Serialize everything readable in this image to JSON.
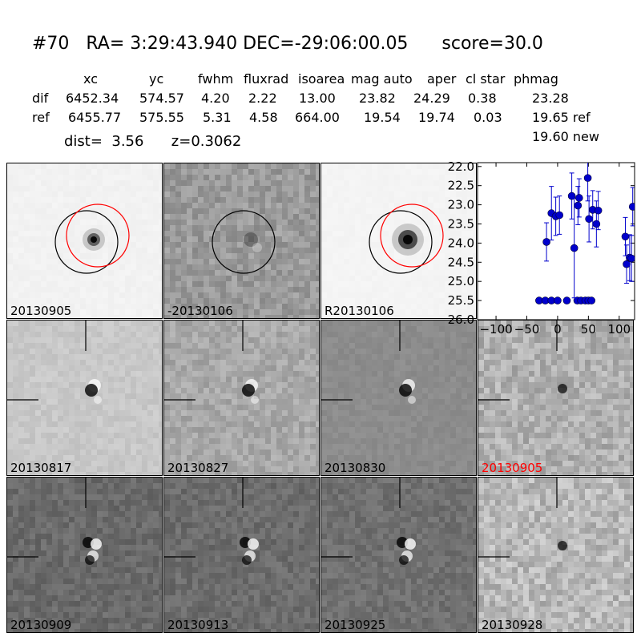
{
  "header": {
    "title": "#70   RA= 3:29:43.940 DEC=-29:06:00.05      score=30.0",
    "columns": [
      "xc",
      "yc",
      "fwhm",
      "fluxrad",
      "isoarea",
      "mag auto",
      "aper",
      "cl star",
      "phmag"
    ],
    "rows": [
      {
        "label": "dif",
        "values": [
          "6452.34",
          "574.57",
          "4.20",
          "2.22",
          "13.00",
          "23.82",
          "24.29",
          "0.38",
          "23.28"
        ]
      },
      {
        "label": "ref",
        "values": [
          "6455.77",
          "575.55",
          "5.31",
          "4.58",
          "664.00",
          "19.54",
          "19.74",
          "0.03",
          "19.65 ref"
        ]
      }
    ],
    "phmag_new": "19.60 new",
    "dist_line": "dist=  3.56      z=0.3062"
  },
  "panels": [
    {
      "label": "20130905",
      "style": "cutout-flat"
    },
    {
      "label": "-20130106",
      "style": "diff-dark"
    },
    {
      "label": "R20130106",
      "style": "cutout-bright"
    },
    {
      "label": "20130817",
      "style": "diff-light"
    },
    {
      "label": "20130827",
      "style": "diff-mid"
    },
    {
      "label": "20130830",
      "style": "diff-smooth"
    },
    {
      "label": "20130905",
      "style": "diff-noisy",
      "highlight": "#ff0000"
    },
    {
      "label": "20130909",
      "style": "diff-dark2"
    },
    {
      "label": "20130913",
      "style": "diff-dark3"
    },
    {
      "label": "20130925",
      "style": "diff-dark4"
    },
    {
      "label": "20130928",
      "style": "diff-noisy2"
    }
  ],
  "chart_data": {
    "type": "scatter",
    "marker_color": "#0000cc",
    "xlim": [
      -130,
      125
    ],
    "ylim": [
      26.0,
      21.9
    ],
    "y_inverted": true,
    "xticks": [
      -100,
      -50,
      0,
      50,
      100
    ],
    "yticks": [
      22.0,
      22.5,
      23.0,
      23.5,
      24.0,
      24.5,
      25.0,
      25.5,
      26.0
    ],
    "points": [
      {
        "x": -30,
        "y": 25.5
      },
      {
        "x": -20,
        "y": 25.5
      },
      {
        "x": -10,
        "y": 25.5
      },
      {
        "x": 0,
        "y": 25.5
      },
      {
        "x": 15,
        "y": 25.5
      },
      {
        "x": 32,
        "y": 25.5
      },
      {
        "x": 38,
        "y": 25.5
      },
      {
        "x": 45,
        "y": 25.5
      },
      {
        "x": 50,
        "y": 25.5
      },
      {
        "x": 55,
        "y": 25.5
      },
      {
        "x": -18,
        "y": 23.97,
        "err": 0.5
      },
      {
        "x": -10,
        "y": 23.22,
        "err": 0.7
      },
      {
        "x": -3,
        "y": 23.3,
        "err": 0.5
      },
      {
        "x": 3,
        "y": 23.27,
        "err": 0.5
      },
      {
        "x": 23,
        "y": 22.77,
        "err": 0.6
      },
      {
        "x": 27,
        "y": 24.13,
        "err": 1.3
      },
      {
        "x": 33,
        "y": 23.02,
        "err": 0.5
      },
      {
        "x": 35,
        "y": 22.82,
        "err": 0.5
      },
      {
        "x": 49,
        "y": 22.3,
        "err": 0.6
      },
      {
        "x": 51,
        "y": 23.37,
        "err": 0.6
      },
      {
        "x": 57,
        "y": 23.13,
        "err": 0.5
      },
      {
        "x": 63,
        "y": 23.5,
        "err": 0.6
      },
      {
        "x": 66,
        "y": 23.15,
        "err": 0.5
      },
      {
        "x": 110,
        "y": 23.83,
        "err": 0.5
      },
      {
        "x": 112,
        "y": 24.55,
        "err": 0.5
      },
      {
        "x": 117,
        "y": 24.38,
        "err": 0.6
      },
      {
        "x": 120,
        "y": 24.4,
        "err": 0.6
      },
      {
        "x": 122,
        "y": 23.05,
        "err": 0.5
      }
    ]
  }
}
